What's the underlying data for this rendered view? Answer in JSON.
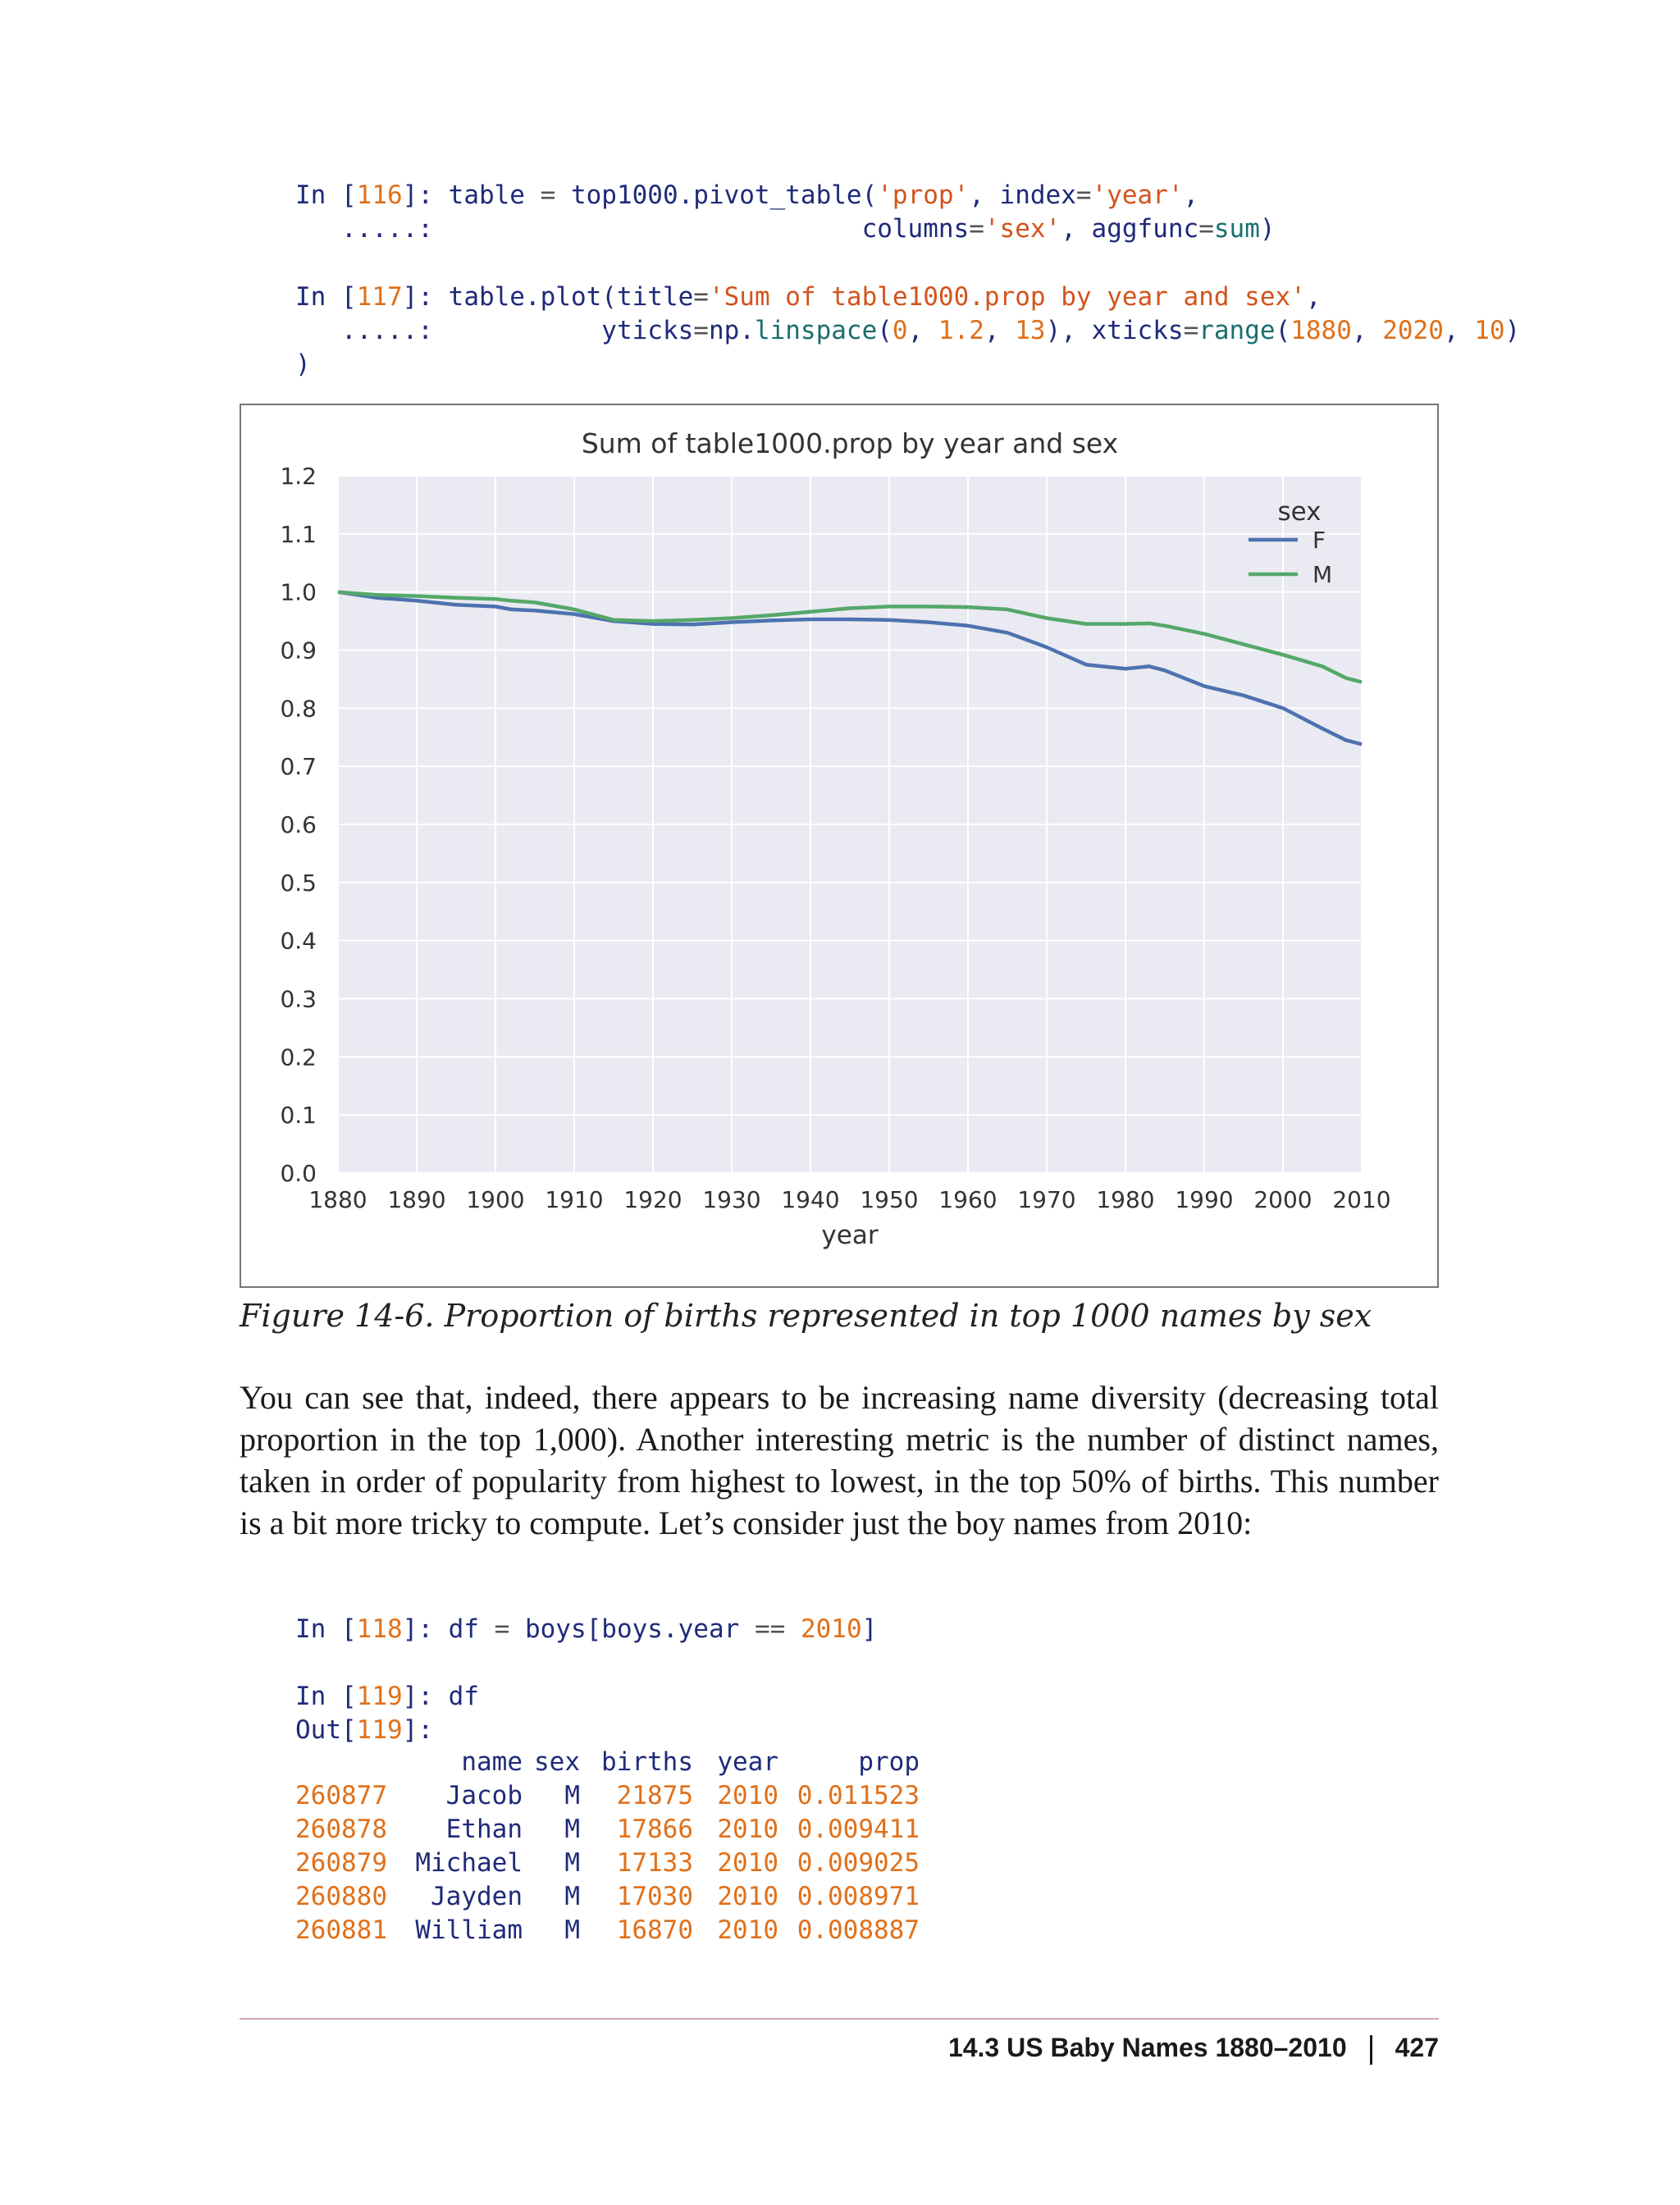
{
  "code_cells": {
    "in116_l1": [
      {
        "c": "k-prompt",
        "t": "In ["
      },
      {
        "c": "k-num",
        "t": "116"
      },
      {
        "c": "k-prompt",
        "t": "]: "
      },
      {
        "c": "k-id",
        "t": "table "
      },
      {
        "c": "k-op",
        "t": "= "
      },
      {
        "c": "k-id",
        "t": "top1000.pivot_table("
      },
      {
        "c": "k-str",
        "t": "'prop'"
      },
      {
        "c": "k-id",
        "t": ", index"
      },
      {
        "c": "k-op",
        "t": "="
      },
      {
        "c": "k-str",
        "t": "'year'"
      },
      {
        "c": "k-id",
        "t": ","
      }
    ],
    "in116_l2": [
      {
        "c": "k-prompt",
        "t": "   .....:"
      },
      {
        "c": "k-id",
        "t": "                            columns"
      },
      {
        "c": "k-op",
        "t": "="
      },
      {
        "c": "k-str",
        "t": "'sex'"
      },
      {
        "c": "k-id",
        "t": ", aggfunc"
      },
      {
        "c": "k-op",
        "t": "="
      },
      {
        "c": "k-fn",
        "t": "sum"
      },
      {
        "c": "k-id",
        "t": ")"
      }
    ],
    "in117_l1": [
      {
        "c": "k-prompt",
        "t": "In ["
      },
      {
        "c": "k-num",
        "t": "117"
      },
      {
        "c": "k-prompt",
        "t": "]: "
      },
      {
        "c": "k-id",
        "t": "table.plot(title"
      },
      {
        "c": "k-op",
        "t": "="
      },
      {
        "c": "k-str",
        "t": "'Sum of table1000.prop by year and sex'"
      },
      {
        "c": "k-id",
        "t": ","
      }
    ],
    "in117_l2": [
      {
        "c": "k-prompt",
        "t": "   .....:"
      },
      {
        "c": "k-id",
        "t": "           yticks"
      },
      {
        "c": "k-op",
        "t": "="
      },
      {
        "c": "k-id",
        "t": "np."
      },
      {
        "c": "k-fn",
        "t": "linspace"
      },
      {
        "c": "k-id",
        "t": "("
      },
      {
        "c": "k-num",
        "t": "0"
      },
      {
        "c": "k-id",
        "t": ", "
      },
      {
        "c": "k-num",
        "t": "1.2"
      },
      {
        "c": "k-id",
        "t": ", "
      },
      {
        "c": "k-num",
        "t": "13"
      },
      {
        "c": "k-id",
        "t": "), xticks"
      },
      {
        "c": "k-op",
        "t": "="
      },
      {
        "c": "k-fn",
        "t": "range"
      },
      {
        "c": "k-id",
        "t": "("
      },
      {
        "c": "k-num",
        "t": "1880"
      },
      {
        "c": "k-id",
        "t": ", "
      },
      {
        "c": "k-num",
        "t": "2020"
      },
      {
        "c": "k-id",
        "t": ", "
      },
      {
        "c": "k-num",
        "t": "10"
      },
      {
        "c": "k-id",
        "t": ")"
      }
    ],
    "in117_l3": [
      {
        "c": "k-id",
        "t": ")"
      }
    ],
    "in118_l1": [
      {
        "c": "k-prompt",
        "t": "In ["
      },
      {
        "c": "k-num",
        "t": "118"
      },
      {
        "c": "k-prompt",
        "t": "]: "
      },
      {
        "c": "k-id",
        "t": "df "
      },
      {
        "c": "k-op",
        "t": "= "
      },
      {
        "c": "k-id",
        "t": "boys[boys.year "
      },
      {
        "c": "k-op",
        "t": "== "
      },
      {
        "c": "k-num",
        "t": "2010"
      },
      {
        "c": "k-id",
        "t": "]"
      }
    ],
    "in119_l1": [
      {
        "c": "k-prompt",
        "t": "In ["
      },
      {
        "c": "k-num",
        "t": "119"
      },
      {
        "c": "k-prompt",
        "t": "]: "
      },
      {
        "c": "k-id",
        "t": "df"
      }
    ],
    "out119_l1": [
      {
        "c": "k-prompt",
        "t": "Out["
      },
      {
        "c": "k-num",
        "t": "119"
      },
      {
        "c": "k-prompt",
        "t": "]:"
      }
    ]
  },
  "chart_data": {
    "type": "line",
    "title": "Sum of table1000.prop by year and sex",
    "xlabel": "year",
    "ylabel": "",
    "xlim": [
      1880,
      2010
    ],
    "ylim": [
      0,
      1.2
    ],
    "xticks": [
      "1880",
      "1890",
      "1900",
      "1910",
      "1920",
      "1930",
      "1940",
      "1950",
      "1960",
      "1970",
      "1980",
      "1990",
      "2000",
      "2010"
    ],
    "yticks": [
      "0.0",
      "0.1",
      "0.2",
      "0.3",
      "0.4",
      "0.5",
      "0.6",
      "0.7",
      "0.8",
      "0.9",
      "1.0",
      "1.1",
      "1.2"
    ],
    "grid": true,
    "legend_title": "sex",
    "legend_position": "top-right",
    "colors": {
      "F": "#4c72b0",
      "M": "#55a868",
      "plot_bg": "#eaeaf2",
      "grid": "#ffffff"
    },
    "series": [
      {
        "name": "F",
        "x": [
          1880,
          1885,
          1890,
          1895,
          1900,
          1902,
          1905,
          1910,
          1915,
          1920,
          1925,
          1930,
          1935,
          1940,
          1945,
          1950,
          1955,
          1960,
          1965,
          1970,
          1975,
          1980,
          1983,
          1985,
          1990,
          1995,
          2000,
          2005,
          2008,
          2010
        ],
        "values": [
          1.0,
          0.99,
          0.985,
          0.978,
          0.975,
          0.97,
          0.968,
          0.962,
          0.95,
          0.945,
          0.944,
          0.948,
          0.951,
          0.953,
          0.953,
          0.952,
          0.948,
          0.942,
          0.93,
          0.905,
          0.875,
          0.868,
          0.872,
          0.865,
          0.838,
          0.822,
          0.8,
          0.765,
          0.745,
          0.738
        ]
      },
      {
        "name": "M",
        "x": [
          1880,
          1885,
          1890,
          1895,
          1900,
          1902,
          1905,
          1910,
          1915,
          1920,
          1925,
          1930,
          1935,
          1940,
          1945,
          1950,
          1955,
          1960,
          1965,
          1970,
          1975,
          1980,
          1983,
          1985,
          1990,
          1995,
          2000,
          2005,
          2008,
          2010
        ],
        "values": [
          1.0,
          0.995,
          0.993,
          0.99,
          0.988,
          0.985,
          0.982,
          0.97,
          0.952,
          0.95,
          0.952,
          0.955,
          0.96,
          0.966,
          0.972,
          0.975,
          0.975,
          0.974,
          0.97,
          0.955,
          0.945,
          0.945,
          0.946,
          0.942,
          0.928,
          0.91,
          0.892,
          0.872,
          0.852,
          0.845
        ]
      }
    ]
  },
  "figure_caption": "Figure 14-6. Proportion of births represented in top 1000 names by sex",
  "body_paragraph": "You can see that, indeed, there appears to be increasing name diversity (decreasing total proportion in the top 1,000). Another interesting metric is the number of distinct names, taken in order of popularity from highest to lowest, in the top 50% of births. This number is a bit more tricky to compute. Let’s consider just the boy names from 2010:",
  "df_table": {
    "columns": [
      "name",
      "sex",
      "births",
      "year",
      "prop"
    ],
    "rows": [
      {
        "index": "260877",
        "name": "Jacob",
        "sex": "M",
        "births": "21875",
        "year": "2010",
        "prop": "0.011523"
      },
      {
        "index": "260878",
        "name": "Ethan",
        "sex": "M",
        "births": "17866",
        "year": "2010",
        "prop": "0.009411"
      },
      {
        "index": "260879",
        "name": "Michael",
        "sex": "M",
        "births": "17133",
        "year": "2010",
        "prop": "0.009025"
      },
      {
        "index": "260880",
        "name": "Jayden",
        "sex": "M",
        "births": "17030",
        "year": "2010",
        "prop": "0.008971"
      },
      {
        "index": "260881",
        "name": "William",
        "sex": "M",
        "births": "16870",
        "year": "2010",
        "prop": "0.008887"
      }
    ]
  },
  "footer": {
    "section": "14.3 US Baby Names 1880–2010",
    "page": "427"
  }
}
